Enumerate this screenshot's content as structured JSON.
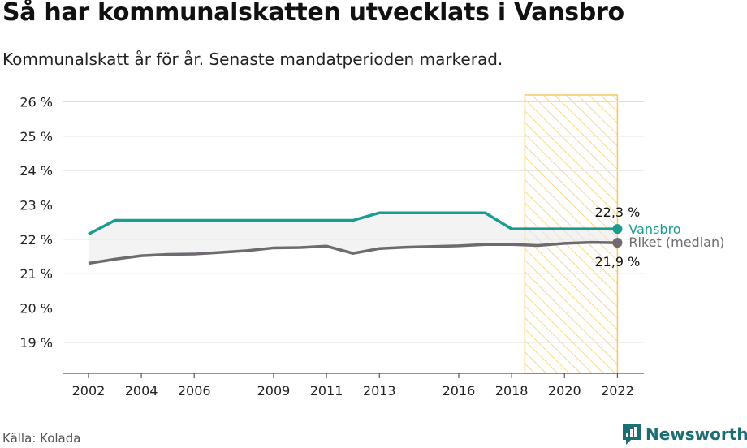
{
  "title": "Så har kommunalskatten utvecklats i Vansbro",
  "subtitle": "Kommunalskatt år för år. Senaste mandatperioden markerad.",
  "source": "Källa: Kolada",
  "brand": {
    "name": "Newsworthy",
    "icon": "newsworthy-logo-icon"
  },
  "colors": {
    "vansbro": "#1a9c91",
    "riket": "#6e6a70",
    "highlight": "#f7c85a",
    "grid": "#dddddd"
  },
  "chart_data": {
    "type": "line",
    "x": [
      2002,
      2003,
      2004,
      2005,
      2006,
      2007,
      2008,
      2009,
      2010,
      2011,
      2012,
      2013,
      2014,
      2015,
      2016,
      2017,
      2018,
      2019,
      2020,
      2021,
      2022
    ],
    "series": [
      {
        "name": "Vansbro",
        "values": [
          22.15,
          22.55,
          22.55,
          22.55,
          22.55,
          22.55,
          22.55,
          22.55,
          22.55,
          22.55,
          22.55,
          22.77,
          22.77,
          22.77,
          22.77,
          22.77,
          22.3,
          22.3,
          22.3,
          22.3,
          22.3
        ]
      },
      {
        "name": "Riket (median)",
        "values": [
          21.3,
          21.42,
          21.52,
          21.56,
          21.57,
          21.62,
          21.67,
          21.75,
          21.76,
          21.8,
          21.59,
          21.73,
          21.77,
          21.79,
          21.81,
          21.85,
          21.85,
          21.82,
          21.88,
          21.91,
          21.9
        ]
      }
    ],
    "x_ticks": [
      2002,
      2004,
      2006,
      2009,
      2011,
      2013,
      2016,
      2018,
      2020,
      2022
    ],
    "x_tick_labels": [
      "2002",
      "2004",
      "2006",
      "2009",
      "2011",
      "2013",
      "2016",
      "2018",
      "2020",
      "2022"
    ],
    "y_ticks": [
      19,
      20,
      21,
      22,
      23,
      24,
      25,
      26
    ],
    "y_tick_labels": [
      "19 %",
      "20 %",
      "21 %",
      "22 %",
      "23 %",
      "24 %",
      "25 %",
      "26 %"
    ],
    "xlim": [
      2001.05,
      2023.0
    ],
    "ylim": [
      18.1,
      26.2
    ],
    "highlight_range": [
      2018.5,
      2022
    ],
    "end_labels": {
      "vansbro_value": "22,3 %",
      "riket_value": "21,9 %"
    },
    "grid": true
  }
}
